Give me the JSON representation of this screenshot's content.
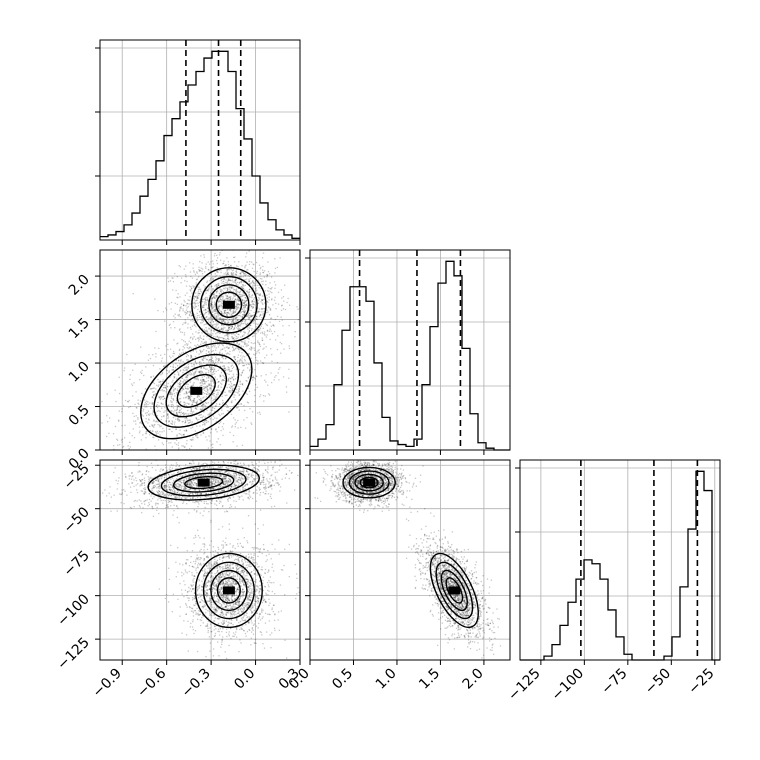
{
  "chart_data": {
    "type": "corner",
    "title": "",
    "grid": true,
    "parameters": [
      {
        "id": "p0",
        "range": [
          -1.05,
          0.3
        ],
        "ticks": [
          -0.9,
          -0.6,
          -0.3,
          0.0,
          0.3
        ],
        "tick_labels": [
          "−0.9",
          "−0.6",
          "−0.3",
          "0.0",
          "0.3"
        ]
      },
      {
        "id": "p1",
        "range": [
          0.0,
          2.3
        ],
        "ticks": [
          0.0,
          0.5,
          1.0,
          1.5,
          2.0
        ],
        "tick_labels": [
          "0.0",
          "0.5",
          "1.0",
          "1.5",
          "2.0"
        ]
      },
      {
        "id": "p2",
        "range": [
          -137,
          -22
        ],
        "ticks": [
          -125,
          -100,
          -75,
          -50,
          -25
        ],
        "tick_labels": [
          "−125",
          "−100",
          "−75",
          "−50",
          "−25"
        ]
      }
    ],
    "histograms": [
      {
        "param": 0,
        "bins": [
          -1.05,
          -0.996,
          -0.942,
          -0.888,
          -0.834,
          -0.78,
          -0.726,
          -0.672,
          -0.618,
          -0.564,
          -0.51,
          -0.456,
          -0.402,
          -0.348,
          -0.294,
          -0.24,
          -0.186,
          -0.132,
          -0.078,
          -0.024,
          0.03,
          0.084,
          0.138,
          0.192,
          0.246,
          0.3
        ],
        "counts": [
          2,
          3,
          5,
          9,
          16,
          26,
          36,
          47,
          62,
          72,
          82,
          92,
          100,
          108,
          112,
          112,
          100,
          78,
          60,
          38,
          22,
          12,
          6,
          3,
          1
        ],
        "quantiles": [
          -0.47,
          -0.25,
          -0.1
        ]
      },
      {
        "param": 1,
        "bins": [
          0.0,
          0.092,
          0.184,
          0.276,
          0.368,
          0.46,
          0.552,
          0.644,
          0.736,
          0.828,
          0.92,
          1.012,
          1.104,
          1.196,
          1.288,
          1.38,
          1.472,
          1.564,
          1.656,
          1.748,
          1.84,
          1.932,
          2.024,
          2.116,
          2.208,
          2.3
        ],
        "counts": [
          2,
          6,
          14,
          36,
          66,
          90,
          90,
          82,
          48,
          18,
          5,
          3,
          2,
          6,
          36,
          68,
          92,
          104,
          96,
          56,
          20,
          4,
          1,
          0,
          0
        ],
        "quantiles": [
          0.57,
          1.23,
          1.73
        ]
      },
      {
        "param": 2,
        "bins": [
          -137,
          -132.4,
          -127.8,
          -123.2,
          -118.6,
          -114,
          -109.4,
          -104.8,
          -100.2,
          -95.6,
          -91,
          -86.4,
          -81.8,
          -77.2,
          -72.6,
          -68,
          -63.4,
          -58.8,
          -54.2,
          -49.6,
          -45,
          -40.4,
          -35.8,
          -31.2,
          -26.6,
          -22
        ],
        "counts": [
          0,
          0,
          0,
          2,
          8,
          18,
          30,
          42,
          52,
          50,
          42,
          26,
          12,
          3,
          0,
          0,
          0,
          0,
          2,
          12,
          38,
          68,
          98,
          88,
          0
        ],
        "quantiles": [
          -102,
          -60,
          -35
        ]
      }
    ],
    "pairs": [
      {
        "x": 0,
        "y": 1,
        "clusters": [
          {
            "cx": -0.18,
            "cy": 1.67,
            "sx": 0.1,
            "sy": 0.17,
            "rho": 0.0,
            "n": 1800
          },
          {
            "cx": -0.4,
            "cy": 0.68,
            "sx": 0.15,
            "sy": 0.22,
            "rho": 0.45,
            "n": 1800
          }
        ]
      },
      {
        "x": 0,
        "y": 2,
        "clusters": [
          {
            "cx": -0.35,
            "cy": -35,
            "sx": 0.15,
            "sy": 4.0,
            "rho": 0.25,
            "n": 1800
          },
          {
            "cx": -0.18,
            "cy": -97,
            "sx": 0.09,
            "sy": 8.5,
            "rho": 0.0,
            "n": 1800
          }
        ]
      },
      {
        "x": 1,
        "y": 2,
        "clusters": [
          {
            "cx": 0.68,
            "cy": -35,
            "sx": 0.12,
            "sy": 3.5,
            "rho": 0.0,
            "n": 1800
          },
          {
            "cx": 1.66,
            "cy": -97,
            "sx": 0.11,
            "sy": 8.5,
            "rho": -0.6,
            "n": 1800
          }
        ]
      }
    ]
  }
}
